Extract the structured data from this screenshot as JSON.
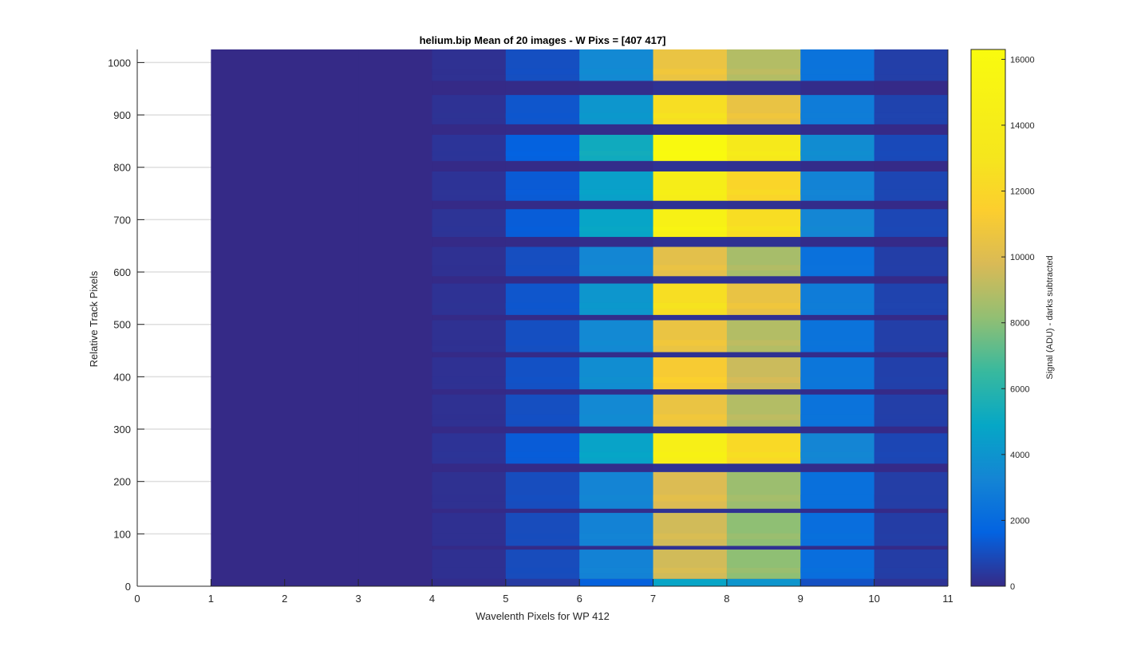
{
  "chart_data": {
    "type": "heatmap",
    "title": "helium.bip  Mean of 20 images - W Pixs = [407  417]",
    "xlabel": "Wavelenth Pixels for WP 412",
    "ylabel": "Relative Track Pixels",
    "colorbar_label": "Signal (ADU) - darks subtracted",
    "colormap": "parula",
    "xlim": [
      0,
      11
    ],
    "ylim": [
      0,
      1025
    ],
    "x_ticks": [
      0,
      1,
      2,
      3,
      4,
      5,
      6,
      7,
      8,
      9,
      10,
      11
    ],
    "x_tick_labels": [
      "0",
      "1",
      "2",
      "3",
      "4",
      "5",
      "6",
      "7",
      "8",
      "9",
      "10",
      "11"
    ],
    "y_ticks": [
      0,
      100,
      200,
      300,
      400,
      500,
      600,
      700,
      800,
      900,
      1000
    ],
    "y_tick_labels": [
      "0",
      "100",
      "200",
      "300",
      "400",
      "500",
      "600",
      "700",
      "800",
      "900",
      "1000"
    ],
    "clim": [
      0,
      16300
    ],
    "colorbar_ticks": [
      0,
      2000,
      4000,
      6000,
      8000,
      10000,
      12000,
      14000,
      16000
    ],
    "colorbar_tick_labels": [
      "0",
      "2000",
      "4000",
      "6000",
      "8000",
      "10000",
      "12000",
      "14000",
      "16000"
    ],
    "grid": true,
    "columns": [
      {
        "x0": 1,
        "x1": 2,
        "peak": 0
      },
      {
        "x0": 2,
        "x1": 3,
        "peak": 0
      },
      {
        "x0": 3,
        "x1": 4,
        "peak": 0
      },
      {
        "x0": 4,
        "x1": 5,
        "peak": 300
      },
      {
        "x0": 5,
        "x1": 6,
        "peak": 1600
      },
      {
        "x0": 6,
        "x1": 7,
        "peak": 5200
      },
      {
        "x0": 7,
        "x1": 8,
        "peak": 16000
      },
      {
        "x0": 8,
        "x1": 9,
        "peak": 13500
      },
      {
        "x0": 9,
        "x1": 10,
        "peak": 3600
      },
      {
        "x0": 10,
        "x1": 11,
        "peak": 900
      }
    ],
    "tracks": [
      {
        "y0": 0,
        "y1": 14,
        "intensity": 0.3
      },
      {
        "y0": 14,
        "y1": 70,
        "intensity": 0.6
      },
      {
        "y0": 77,
        "y1": 140,
        "intensity": 0.6
      },
      {
        "y0": 148,
        "y1": 218,
        "intensity": 0.62
      },
      {
        "y0": 234,
        "y1": 292,
        "intensity": 0.9
      },
      {
        "y0": 305,
        "y1": 366,
        "intensity": 0.66
      },
      {
        "y0": 376,
        "y1": 437,
        "intensity": 0.7
      },
      {
        "y0": 447,
        "y1": 508,
        "intensity": 0.66
      },
      {
        "y0": 518,
        "y1": 578,
        "intensity": 0.78
      },
      {
        "y0": 592,
        "y1": 648,
        "intensity": 0.64
      },
      {
        "y0": 667,
        "y1": 720,
        "intensity": 0.92
      },
      {
        "y0": 736,
        "y1": 792,
        "intensity": 0.88
      },
      {
        "y0": 812,
        "y1": 862,
        "intensity": 1.0
      },
      {
        "y0": 882,
        "y1": 938,
        "intensity": 0.78
      },
      {
        "y0": 965,
        "y1": 1025,
        "intensity": 0.66
      }
    ]
  }
}
